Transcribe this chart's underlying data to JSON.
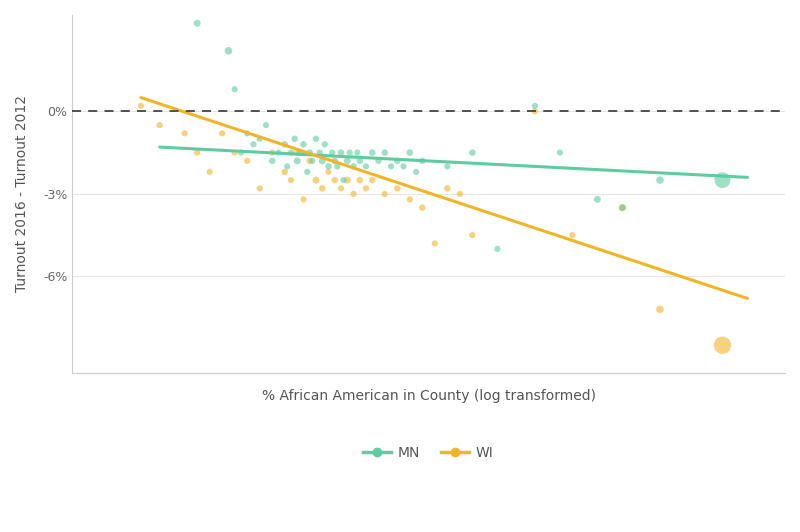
{
  "title": "",
  "xlabel": "% African American in County (log transformed)",
  "ylabel": "Turnout 2016 - Turnout 2012",
  "ylim": [
    -9.5,
    3.5
  ],
  "xlim": [
    -0.2,
    5.5
  ],
  "yticks": [
    0,
    -3,
    -6
  ],
  "ytick_labels": [
    "0%",
    "-3%",
    "-6%"
  ],
  "grid_color": "#e5e5e5",
  "background_color": "#ffffff",
  "mn_color": "#5ecba1",
  "wi_color": "#f0b429",
  "mn_alpha": 0.6,
  "wi_alpha": 0.6,
  "mn_scatter": {
    "x": [
      0.8,
      1.05,
      1.1,
      1.15,
      1.2,
      1.25,
      1.3,
      1.35,
      1.4,
      1.45,
      1.5,
      1.52,
      1.55,
      1.58,
      1.6,
      1.62,
      1.65,
      1.68,
      1.7,
      1.72,
      1.75,
      1.78,
      1.8,
      1.82,
      1.85,
      1.88,
      1.9,
      1.92,
      1.95,
      1.97,
      2.0,
      2.02,
      2.05,
      2.08,
      2.1,
      2.15,
      2.2,
      2.25,
      2.3,
      2.35,
      2.4,
      2.45,
      2.5,
      2.55,
      2.6,
      2.8,
      3.0,
      3.2,
      3.5,
      3.7,
      4.0,
      4.2,
      4.5,
      5.0
    ],
    "y": [
      3.2,
      2.2,
      0.8,
      -1.5,
      -0.8,
      -1.2,
      -1.0,
      -0.5,
      -1.8,
      -1.5,
      -1.2,
      -2.0,
      -1.5,
      -1.0,
      -1.8,
      -1.5,
      -1.2,
      -2.2,
      -1.5,
      -1.8,
      -1.0,
      -1.5,
      -1.8,
      -1.2,
      -2.0,
      -1.5,
      -1.8,
      -2.0,
      -1.5,
      -2.5,
      -1.8,
      -1.5,
      -2.0,
      -1.5,
      -1.8,
      -2.0,
      -1.5,
      -1.8,
      -1.5,
      -2.0,
      -1.8,
      -2.0,
      -1.5,
      -2.2,
      -1.8,
      -2.0,
      -1.5,
      -5.0,
      0.2,
      -1.5,
      -3.2,
      -3.5,
      -2.5,
      -2.5
    ],
    "s": [
      25,
      30,
      20,
      20,
      20,
      20,
      20,
      20,
      22,
      20,
      22,
      20,
      20,
      22,
      25,
      20,
      22,
      20,
      22,
      20,
      22,
      20,
      25,
      20,
      22,
      20,
      22,
      20,
      22,
      20,
      25,
      20,
      22,
      20,
      22,
      20,
      22,
      20,
      22,
      20,
      22,
      20,
      22,
      20,
      22,
      20,
      22,
      20,
      20,
      20,
      25,
      25,
      30,
      130
    ]
  },
  "wi_scatter": {
    "x": [
      0.35,
      0.5,
      0.7,
      0.8,
      0.9,
      1.0,
      1.1,
      1.2,
      1.3,
      1.4,
      1.5,
      1.55,
      1.6,
      1.65,
      1.7,
      1.75,
      1.8,
      1.85,
      1.9,
      1.95,
      2.0,
      2.05,
      2.1,
      2.15,
      2.2,
      2.3,
      2.4,
      2.5,
      2.6,
      2.7,
      2.8,
      2.9,
      3.0,
      3.5,
      3.8,
      4.2,
      4.5,
      5.0
    ],
    "y": [
      0.2,
      -0.5,
      -0.8,
      -1.5,
      -2.2,
      -0.8,
      -1.5,
      -1.8,
      -2.8,
      -1.5,
      -2.2,
      -2.5,
      -1.5,
      -3.2,
      -1.8,
      -2.5,
      -2.8,
      -2.2,
      -2.5,
      -2.8,
      -2.5,
      -3.0,
      -2.5,
      -2.8,
      -2.5,
      -3.0,
      -2.8,
      -3.2,
      -3.5,
      -4.8,
      -2.8,
      -3.0,
      -4.5,
      0.0,
      -4.5,
      -3.5,
      -7.2,
      -8.5
    ],
    "s": [
      20,
      20,
      20,
      20,
      20,
      20,
      20,
      20,
      20,
      20,
      22,
      20,
      22,
      20,
      22,
      25,
      22,
      20,
      22,
      20,
      25,
      20,
      22,
      20,
      22,
      20,
      22,
      20,
      22,
      20,
      22,
      20,
      20,
      20,
      20,
      25,
      30,
      155
    ]
  },
  "mn_line": {
    "x0": 0.5,
    "x1": 5.2,
    "y0": -1.3,
    "y1": -2.4
  },
  "wi_line": {
    "x0": 0.35,
    "x1": 5.2,
    "y0": 0.5,
    "y1": -6.8
  },
  "dashed_line_y": 0,
  "legend_labels": [
    "MN",
    "WI"
  ],
  "legend_colors": [
    "#5ecba1",
    "#f0b429"
  ]
}
